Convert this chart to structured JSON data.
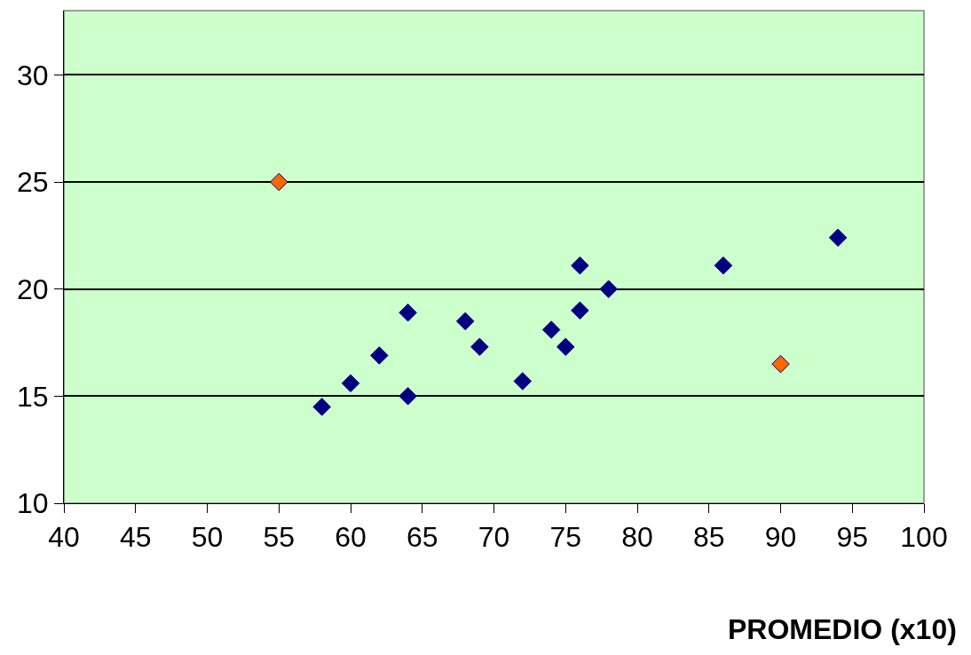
{
  "chart_data": {
    "type": "scatter",
    "xlabel": "PROMEDIO (x10)",
    "series": [
      {
        "color": "#000080",
        "x": [
          58,
          60,
          62,
          64,
          64,
          68,
          69,
          72,
          74,
          75,
          76,
          76,
          78,
          86,
          94
        ],
        "values": [
          14.5,
          15.6,
          16.9,
          18.9,
          15.0,
          18.5,
          17.3,
          15.7,
          18.1,
          17.3,
          21.1,
          19.0,
          20.0,
          21.1,
          22.4
        ]
      },
      {
        "color": "#ff6600",
        "x": [
          55,
          90
        ],
        "values": [
          25.0,
          16.5
        ]
      }
    ],
    "xlim": [
      40,
      100
    ],
    "xticks": [
      40,
      45,
      50,
      55,
      60,
      65,
      70,
      75,
      80,
      85,
      90,
      95,
      100
    ],
    "ylim": [
      10,
      33
    ],
    "yticks": [
      10,
      15,
      20,
      25,
      30
    ],
    "grid": "y",
    "marker": "diamond"
  }
}
